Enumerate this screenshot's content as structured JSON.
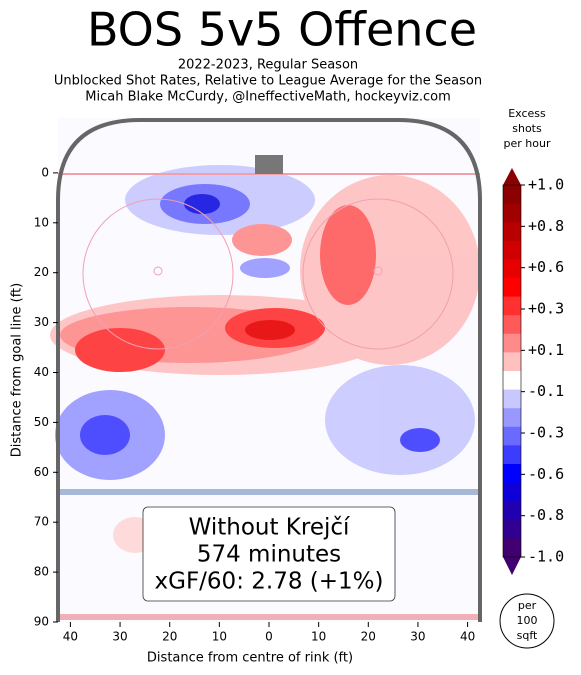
{
  "chart_data": {
    "type": "contour",
    "title": "BOS 5v5 Offence",
    "subtitle": [
      "2022-2023, Regular Season",
      "Unblocked Shot Rates, Relative to League Average for the Season",
      "Micah Blake McCurdy, @IneffectiveMath, hockeyviz.com"
    ],
    "xlabel": "Distance from centre of rink (ft)",
    "ylabel": "Distance from goal line (ft)",
    "xlim": [
      -42.5,
      42.5
    ],
    "ylim": [
      -11,
      90
    ],
    "y_inverted": true,
    "xticks": [
      {
        "value": -40,
        "label": "40"
      },
      {
        "value": -30,
        "label": "30"
      },
      {
        "value": -20,
        "label": "20"
      },
      {
        "value": -10,
        "label": "10"
      },
      0,
      10,
      20,
      30,
      40
    ],
    "yticks": [
      0,
      10,
      20,
      30,
      40,
      50,
      60,
      70,
      80,
      90
    ],
    "annotation": [
      "Without Krejčí",
      "574 minutes",
      "xGF/60: 2.78 (+1%)"
    ],
    "colorbar_title": [
      "Excess",
      "shots",
      "per hour"
    ],
    "colorbar_ticks": [
      {
        "value": 1.0,
        "label": "+1.0"
      },
      {
        "value": 0.8,
        "label": "+0.8"
      },
      {
        "value": 0.6,
        "label": "+0.6"
      },
      {
        "value": 0.3,
        "label": "+0.3"
      },
      {
        "value": 0.1,
        "label": "+0.1"
      },
      -0.1,
      -0.3,
      -0.6,
      -0.8,
      {
        "value": -1.0,
        "label": "-1.0"
      }
    ],
    "colorbar_colors": [
      "#8b0000",
      "#a00000",
      "#b80000",
      "#d00000",
      "#e80000",
      "#ff0000",
      "#ff3030",
      "#ff5a5a",
      "#ff8a8a",
      "#ffc0c0",
      "#ffffff",
      "#c8c8ff",
      "#9898ff",
      "#6a6aff",
      "#3c3cff",
      "#0000ff",
      "#1000d8",
      "#2000b0",
      "#300090",
      "#400070"
    ],
    "scale_note": [
      "per",
      "100",
      "sqft"
    ]
  }
}
